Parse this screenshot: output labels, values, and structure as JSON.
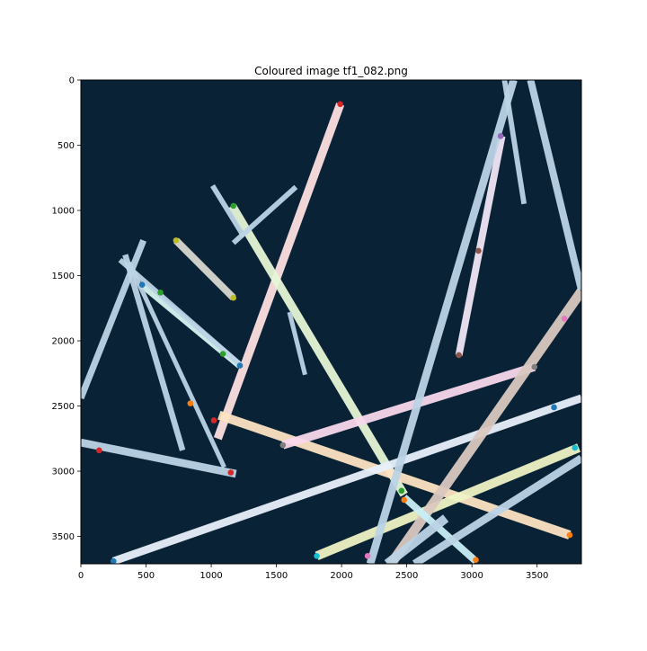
{
  "chart_data": {
    "type": "scatter",
    "title": "Coloured image tf1_082.png",
    "xlabel": "",
    "ylabel": "",
    "xlim": [
      0,
      3840
    ],
    "ylim": [
      3710,
      0
    ],
    "y_inverted": true,
    "grid": false,
    "x_ticks": [
      0,
      500,
      1000,
      1500,
      2000,
      2500,
      3000,
      3500
    ],
    "y_ticks": [
      0,
      500,
      1000,
      1500,
      2000,
      2500,
      3000,
      3500
    ],
    "x_tick_labels": [
      "0",
      "500",
      "1000",
      "1500",
      "2000",
      "2500",
      "3000",
      "3500"
    ],
    "y_tick_labels": [
      "0",
      "500",
      "1000",
      "1500",
      "2000",
      "2500",
      "3000",
      "3500"
    ],
    "background_color": "#0a2235",
    "base_stripe_color": "#bcd4e6",
    "stripes": [
      {
        "x1": 1050,
        "y1": 2750,
        "x2": 1990,
        "y2": 185,
        "width": 65,
        "color": "#fde0e0"
      },
      {
        "x1": 1160,
        "y1": 965,
        "x2": 2480,
        "y2": 3180,
        "width": 65,
        "color": "#e6f7d6"
      },
      {
        "x1": 1060,
        "y1": 2570,
        "x2": 3750,
        "y2": 3490,
        "width": 70,
        "color": "#fde3c2"
      },
      {
        "x1": 1550,
        "y1": 2800,
        "x2": 3480,
        "y2": 2200,
        "width": 65,
        "color": "#f8d8ec"
      },
      {
        "x1": 250,
        "y1": 3690,
        "x2": 3840,
        "y2": 2440,
        "width": 60,
        "color": "#e8f0fb"
      },
      {
        "x1": 1810,
        "y1": 3650,
        "x2": 3820,
        "y2": 2820,
        "width": 70,
        "color": "#eef3c4"
      },
      {
        "x1": 2380,
        "y1": 3710,
        "x2": 3840,
        "y2": 1620,
        "width": 75,
        "color": "#d9c8c0"
      },
      {
        "x1": 2900,
        "y1": 2110,
        "x2": 3230,
        "y2": 430,
        "width": 55,
        "color": "#f0e6f5"
      },
      {
        "x1": 470,
        "y1": 1570,
        "x2": 1220,
        "y2": 2190,
        "width": 55,
        "color": "#d6f5f0"
      },
      {
        "x1": 730,
        "y1": 1230,
        "x2": 1170,
        "y2": 1670,
        "width": 55,
        "color": "#d8d8d0"
      },
      {
        "x1": 2480,
        "y1": 3200,
        "x2": 3030,
        "y2": 3690,
        "width": 55,
        "color": "#c8eef5"
      },
      {
        "x1": 0,
        "y1": 2780,
        "x2": 1190,
        "y2": 3020,
        "width": 60,
        "color": "#bcd4e6"
      },
      {
        "x1": 0,
        "y1": 2440,
        "x2": 480,
        "y2": 1230,
        "width": 50,
        "color": "#bcd4e6"
      },
      {
        "x1": 300,
        "y1": 1380,
        "x2": 1220,
        "y2": 2180,
        "width": 40,
        "color": "#bcd4e6"
      },
      {
        "x1": 340,
        "y1": 1340,
        "x2": 780,
        "y2": 2840,
        "width": 45,
        "color": "#bcd4e6"
      },
      {
        "x1": 370,
        "y1": 1400,
        "x2": 1100,
        "y2": 2970,
        "width": 35,
        "color": "#bcd4e6"
      },
      {
        "x1": 1010,
        "y1": 810,
        "x2": 1250,
        "y2": 1200,
        "width": 40,
        "color": "#bcd4e6"
      },
      {
        "x1": 1170,
        "y1": 1250,
        "x2": 1650,
        "y2": 820,
        "width": 40,
        "color": "#bcd4e6"
      },
      {
        "x1": 1600,
        "y1": 1780,
        "x2": 1720,
        "y2": 2260,
        "width": 35,
        "color": "#bcd4e6"
      },
      {
        "x1": 2220,
        "y1": 3710,
        "x2": 3320,
        "y2": 0,
        "width": 60,
        "color": "#bcd4e6"
      },
      {
        "x1": 3250,
        "y1": 0,
        "x2": 3400,
        "y2": 950,
        "width": 40,
        "color": "#bcd4e6"
      },
      {
        "x1": 3450,
        "y1": 0,
        "x2": 3840,
        "y2": 1610,
        "width": 55,
        "color": "#bcd4e6"
      },
      {
        "x1": 2350,
        "y1": 3710,
        "x2": 2800,
        "y2": 3360,
        "width": 70,
        "color": "#bcd4e6"
      },
      {
        "x1": 2560,
        "y1": 3710,
        "x2": 3840,
        "y2": 2900,
        "width": 60,
        "color": "#bcd4e6"
      }
    ],
    "points": [
      {
        "x": 1990,
        "y": 185,
        "color": "#d62728"
      },
      {
        "x": 3220,
        "y": 430,
        "color": "#9467bd"
      },
      {
        "x": 1170,
        "y": 965,
        "color": "#2ca02c"
      },
      {
        "x": 730,
        "y": 1230,
        "color": "#bcbd22"
      },
      {
        "x": 3050,
        "y": 1310,
        "color": "#8c564b"
      },
      {
        "x": 470,
        "y": 1570,
        "color": "#1f77b4"
      },
      {
        "x": 610,
        "y": 1630,
        "color": "#2ca02c"
      },
      {
        "x": 1170,
        "y": 1670,
        "color": "#bcbd22"
      },
      {
        "x": 3710,
        "y": 1830,
        "color": "#e377c2"
      },
      {
        "x": 1090,
        "y": 2100,
        "color": "#2ca02c"
      },
      {
        "x": 2900,
        "y": 2110,
        "color": "#8c564b"
      },
      {
        "x": 1220,
        "y": 2190,
        "color": "#1f77b4"
      },
      {
        "x": 3480,
        "y": 2200,
        "color": "#7f7f7f"
      },
      {
        "x": 840,
        "y": 2480,
        "color": "#ff7f0e"
      },
      {
        "x": 3630,
        "y": 2510,
        "color": "#1f77b4"
      },
      {
        "x": 1020,
        "y": 2610,
        "color": "#d62728"
      },
      {
        "x": 1550,
        "y": 2800,
        "color": "#7f7f7f"
      },
      {
        "x": 3790,
        "y": 2820,
        "color": "#17becf"
      },
      {
        "x": 140,
        "y": 2840,
        "color": "#d62728"
      },
      {
        "x": 1150,
        "y": 3010,
        "color": "#d62728"
      },
      {
        "x": 2460,
        "y": 3150,
        "color": "#2ca02c"
      },
      {
        "x": 2480,
        "y": 3220,
        "color": "#ff7f0e"
      },
      {
        "x": 3750,
        "y": 3490,
        "color": "#ff7f0e"
      },
      {
        "x": 1810,
        "y": 3650,
        "color": "#17becf"
      },
      {
        "x": 2200,
        "y": 3650,
        "color": "#e377c2"
      },
      {
        "x": 3030,
        "y": 3680,
        "color": "#ff7f0e"
      },
      {
        "x": 250,
        "y": 3690,
        "color": "#1f77b4"
      }
    ]
  }
}
